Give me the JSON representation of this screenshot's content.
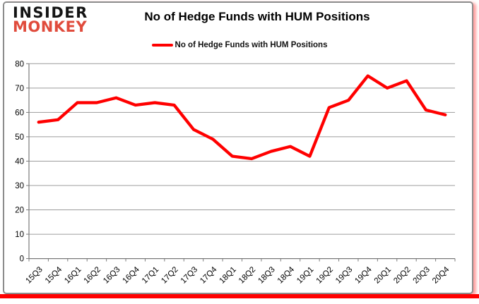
{
  "logo": {
    "line1": "INSIDER",
    "line2": "MONKEY"
  },
  "header": {
    "title": "No of Hedge Funds with HUM Positions"
  },
  "legend": {
    "label": "No of Hedge Funds with HUM Positions"
  },
  "colors": {
    "series_red": "#ff0000",
    "grid": "#9c9c9c",
    "axis": "#7a7a7a",
    "tick_text": "#000000",
    "logo_monkey": "#e04b3c",
    "logo_insider": "#141414",
    "card_border": "#8c8c8c",
    "bottom_bar": "#ff0000"
  },
  "chart_data": {
    "type": "line",
    "title": "No of Hedge Funds with HUM Positions",
    "categories": [
      "15Q3",
      "15Q4",
      "16Q1",
      "16Q2",
      "16Q3",
      "16Q4",
      "17Q1",
      "17Q2",
      "17Q3",
      "17Q4",
      "18Q1",
      "18Q2",
      "18Q3",
      "18Q4",
      "19Q1",
      "19Q2",
      "19Q3",
      "19Q4",
      "20Q1",
      "20Q2",
      "20Q3",
      "20Q4"
    ],
    "series": [
      {
        "name": "No of Hedge Funds with HUM Positions",
        "color": "#ff0000",
        "values": [
          56,
          57,
          64,
          64,
          66,
          63,
          64,
          63,
          53,
          49,
          42,
          41,
          44,
          46,
          42,
          62,
          65,
          75,
          70,
          73,
          61,
          59
        ]
      }
    ],
    "xlabel": "",
    "ylabel": "",
    "ylim": [
      0,
      80
    ],
    "ytick_step": 10,
    "yticks": [
      0,
      10,
      20,
      30,
      40,
      50,
      60,
      70,
      80
    ],
    "grid": true,
    "legend_position": "top"
  }
}
